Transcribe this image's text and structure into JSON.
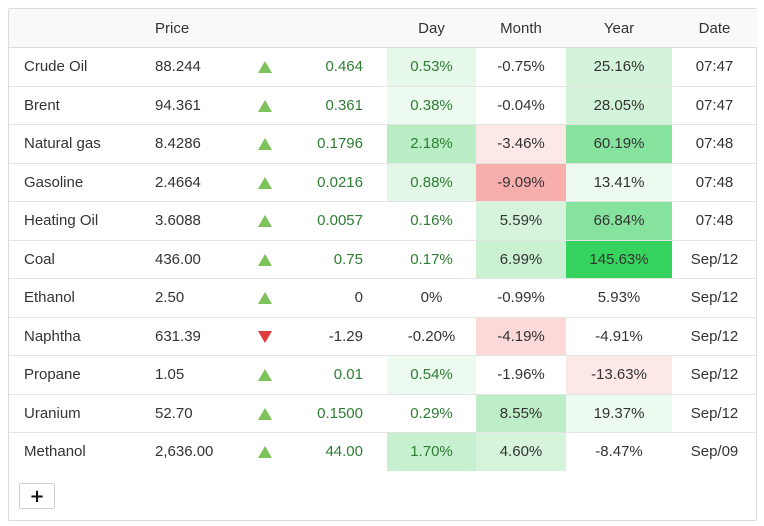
{
  "header": {
    "name": "",
    "price": "Price",
    "dir": "",
    "change": "",
    "day": "Day",
    "month": "Month",
    "year": "Year",
    "date": "Date"
  },
  "colors": {
    "up_arrow": "#7dc25a",
    "down_arrow": "#e0393e",
    "positive_text": "#2e7d32"
  },
  "rows": [
    {
      "name": "Crude Oil",
      "price": "88.244",
      "dir": "up",
      "change": "0.464",
      "day": "0.53%",
      "month": "-0.75%",
      "year": "25.16%",
      "date": "07:47",
      "day_bg": "#e6f8ea",
      "month_bg": "",
      "year_bg": "#d3f3da"
    },
    {
      "name": "Brent",
      "price": "94.361",
      "dir": "up",
      "change": "0.361",
      "day": "0.38%",
      "month": "-0.04%",
      "year": "28.05%",
      "date": "07:47",
      "day_bg": "#edfaf0",
      "month_bg": "",
      "year_bg": "#d3f3da"
    },
    {
      "name": "Natural gas",
      "price": "8.4286",
      "dir": "up",
      "change": "0.1796",
      "day": "2.18%",
      "month": "-3.46%",
      "year": "60.19%",
      "date": "07:48",
      "day_bg": "#b9eec5",
      "month_bg": "#fde8e8",
      "year_bg": "#86e39d"
    },
    {
      "name": "Gasoline",
      "price": "2.4664",
      "dir": "up",
      "change": "0.0216",
      "day": "0.88%",
      "month": "-9.09%",
      "year": "13.41%",
      "date": "07:48",
      "day_bg": "#e3f7e7",
      "month_bg": "#f9aeae",
      "year_bg": "#edfaf0"
    },
    {
      "name": "Heating Oil",
      "price": "3.6088",
      "dir": "up",
      "change": "0.0057",
      "day": "0.16%",
      "month": "5.59%",
      "year": "66.84%",
      "date": "07:48",
      "day_bg": "",
      "month_bg": "#d6f4dc",
      "year_bg": "#86e39d"
    },
    {
      "name": "Coal",
      "price": "436.00",
      "dir": "up",
      "change": "0.75",
      "day": "0.17%",
      "month": "6.99%",
      "year": "145.63%",
      "date": "Sep/12",
      "day_bg": "",
      "month_bg": "#c9f1d2",
      "year_bg": "#36d45e"
    },
    {
      "name": "Ethanol",
      "price": "2.50",
      "dir": "up",
      "change": "0",
      "day": "0%",
      "month": "-0.99%",
      "year": "5.93%",
      "date": "Sep/12",
      "day_bg": "",
      "month_bg": "",
      "year_bg": ""
    },
    {
      "name": "Naphtha",
      "price": "631.39",
      "dir": "down",
      "change": "-1.29",
      "day": "-0.20%",
      "month": "-4.19%",
      "year": "-4.91%",
      "date": "Sep/12",
      "day_bg": "",
      "month_bg": "#fcd9d9",
      "year_bg": ""
    },
    {
      "name": "Propane",
      "price": "1.05",
      "dir": "up",
      "change": "0.01",
      "day": "0.54%",
      "month": "-1.96%",
      "year": "-13.63%",
      "date": "Sep/12",
      "day_bg": "#edfaf0",
      "month_bg": "",
      "year_bg": "#fde8e8"
    },
    {
      "name": "Uranium",
      "price": "52.70",
      "dir": "up",
      "change": "0.1500",
      "day": "0.29%",
      "month": "8.55%",
      "year": "19.37%",
      "date": "Sep/12",
      "day_bg": "",
      "month_bg": "#bdeec8",
      "year_bg": "#edfaf0"
    },
    {
      "name": "Methanol",
      "price": "2,636.00",
      "dir": "up",
      "change": "44.00",
      "day": "1.70%",
      "month": "4.60%",
      "year": "-8.47%",
      "date": "Sep/09",
      "day_bg": "#c6f0d0",
      "month_bg": "#d6f4dc",
      "year_bg": ""
    }
  ],
  "add_button": {
    "label": "+"
  }
}
